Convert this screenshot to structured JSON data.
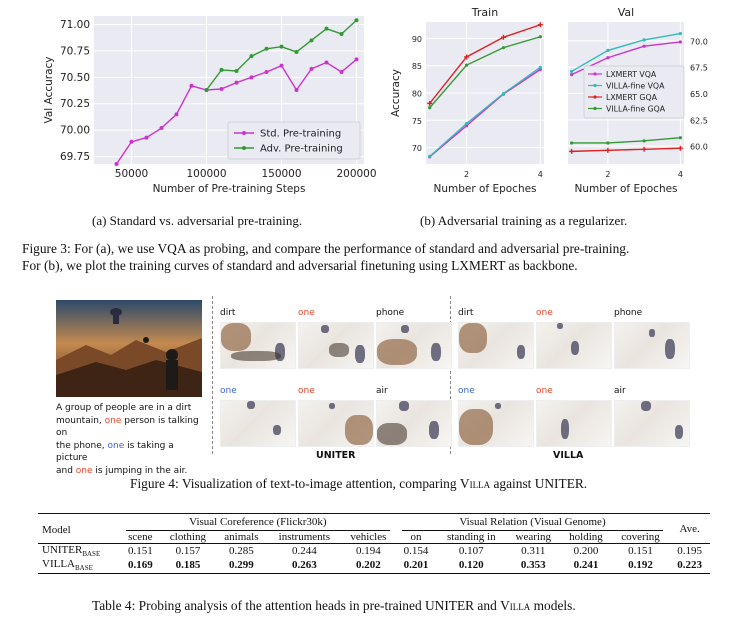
{
  "chart_data": [
    {
      "type": "line",
      "ylabel": "Val Accuracy",
      "xlabel": "Number of Pre-training Steps",
      "xlim": [
        25000,
        205000
      ],
      "ylim": [
        69.68,
        71.08
      ],
      "xticks": [
        50000,
        100000,
        150000,
        200000
      ],
      "xtick_labels": [
        "50000",
        "100000",
        "150000",
        "200000"
      ],
      "yticks": [
        69.75,
        70.0,
        70.25,
        70.5,
        70.75,
        71.0
      ],
      "ytick_labels": [
        "69.75",
        "70.00",
        "70.25",
        "70.50",
        "70.75",
        "71.00"
      ],
      "legend_position": "lower-right",
      "series": [
        {
          "name": "Std. Pre-training",
          "color": "#cc33cc",
          "x": [
            40000,
            50000,
            60000,
            70000,
            80000,
            90000,
            100000,
            110000,
            120000,
            130000,
            140000,
            150000,
            160000,
            170000,
            180000,
            190000,
            200000
          ],
          "y": [
            69.68,
            69.89,
            69.93,
            70.02,
            70.15,
            70.42,
            70.38,
            70.39,
            70.45,
            70.5,
            70.55,
            70.61,
            70.38,
            70.58,
            70.64,
            70.55,
            70.67
          ]
        },
        {
          "name": "Adv. Pre-training",
          "color": "#339933",
          "x": [
            100000,
            110000,
            120000,
            130000,
            140000,
            150000,
            160000,
            170000,
            180000,
            190000,
            200000
          ],
          "y": [
            70.38,
            70.57,
            70.56,
            70.7,
            70.77,
            70.79,
            70.74,
            70.85,
            70.96,
            70.91,
            71.04
          ]
        }
      ]
    },
    {
      "type": "line",
      "title": "Train",
      "ylabel": "Accuracy",
      "xlabel": "Number of Epoches",
      "xlim": [
        0.9,
        4.1
      ],
      "ylim": [
        67,
        93
      ],
      "xticks": [
        2,
        4
      ],
      "xtick_labels": [
        "2",
        "4"
      ],
      "yticks": [
        70,
        75,
        80,
        85,
        90
      ],
      "ytick_labels": [
        "70",
        "75",
        "80",
        "85",
        "90"
      ],
      "series": [
        {
          "name": "LXMERT VQA",
          "color": "#cc33cc",
          "x": [
            1,
            2,
            3,
            4
          ],
          "y": [
            68.3,
            74.0,
            79.8,
            84.3
          ]
        },
        {
          "name": "VILLA-fine VQA",
          "color": "#33bbbb",
          "x": [
            1,
            2,
            3,
            4
          ],
          "y": [
            68.4,
            74.4,
            79.9,
            84.7
          ]
        },
        {
          "name": "LXMERT GQA",
          "color": "#dd2222",
          "x": [
            1,
            2,
            3,
            4
          ],
          "y": [
            78.1,
            86.6,
            90.2,
            92.5
          ]
        },
        {
          "name": "VILLA-fine GQA",
          "color": "#339933",
          "x": [
            1,
            2,
            3,
            4
          ],
          "y": [
            77.3,
            85.1,
            88.3,
            90.3
          ]
        }
      ]
    },
    {
      "type": "line",
      "title": "Val",
      "xlabel": "Number of Epoches",
      "xlim": [
        0.9,
        4.1
      ],
      "ylim": [
        58.3,
        71.8
      ],
      "xticks": [
        2,
        4
      ],
      "xtick_labels": [
        "2",
        "4"
      ],
      "yticks": [
        60.0,
        62.5,
        65.0,
        67.5,
        70.0
      ],
      "ytick_labels": [
        "60.0",
        "62.5",
        "65.0",
        "67.5",
        "70.0"
      ],
      "legend_position": "center-right",
      "series": [
        {
          "name": "LXMERT VQA",
          "color": "#cc33cc",
          "x": [
            1,
            2,
            3,
            4
          ],
          "y": [
            66.8,
            68.4,
            69.5,
            69.9
          ]
        },
        {
          "name": "VILLA-fine VQA",
          "color": "#33bbbb",
          "x": [
            1,
            2,
            3,
            4
          ],
          "y": [
            67.1,
            69.1,
            70.1,
            70.7
          ]
        },
        {
          "name": "LXMERT GQA",
          "color": "#dd2222",
          "x": [
            1,
            2,
            3,
            4
          ],
          "y": [
            59.5,
            59.6,
            59.7,
            59.8
          ]
        },
        {
          "name": "VILLA-fine GQA",
          "color": "#339933",
          "x": [
            1,
            2,
            3,
            4
          ],
          "y": [
            60.3,
            60.3,
            60.5,
            60.8
          ]
        }
      ]
    }
  ],
  "fig3": {
    "sub_a": "(a) Standard vs. adversarial pre-training.",
    "sub_b": "(b) Adversarial training as a regularizer.",
    "caption_l1": "Figure 3: For (a), we use VQA as probing, and compare the performance of standard and adversarial pre-training.",
    "caption_l2": "For (b), we plot the training curves of standard and adversarial finetuning using LXMERT as backbone."
  },
  "fig4": {
    "desc": [
      [
        {
          "t": "A group of people are in a dirt",
          "c": ""
        }
      ],
      [
        {
          "t": "mountain, ",
          "c": ""
        },
        {
          "t": "one",
          "c": "red"
        },
        {
          "t": " person is talking on",
          "c": ""
        }
      ],
      [
        {
          "t": "the phone, ",
          "c": ""
        },
        {
          "t": "one",
          "c": "blue"
        },
        {
          "t": " is taking a picture",
          "c": ""
        }
      ],
      [
        {
          "t": "and ",
          "c": ""
        },
        {
          "t": "one",
          "c": "red"
        },
        {
          "t": " is jumping in the air.",
          "c": ""
        }
      ]
    ],
    "uniter_words": [
      {
        "w": "dirt",
        "c": "#111111"
      },
      {
        "w": "one",
        "c": "#e8452c"
      },
      {
        "w": "phone",
        "c": "#111111"
      },
      {
        "w": "one",
        "c": "#3a66d0"
      },
      {
        "w": "one",
        "c": "#e8452c"
      },
      {
        "w": "air",
        "c": "#111111"
      }
    ],
    "villa_words": [
      {
        "w": "dirt",
        "c": "#111111"
      },
      {
        "w": "one",
        "c": "#e8452c"
      },
      {
        "w": "phone",
        "c": "#111111"
      },
      {
        "w": "one",
        "c": "#3a66d0"
      },
      {
        "w": "one",
        "c": "#e8452c"
      },
      {
        "w": "air",
        "c": "#111111"
      }
    ],
    "label_uniter": "UNITER",
    "label_villa": "VILLA",
    "caption_pre": "Figure 4: Visualization of text-to-image attention, comparing ",
    "caption_sc": "Villa",
    "caption_post": " against UNITER."
  },
  "table4": {
    "col_model": "Model",
    "group1": "Visual Coreference (Flickr30k)",
    "group2": "Visual Relation (Visual Genome)",
    "col_ave": "Ave.",
    "subcols": [
      "scene",
      "clothing",
      "animals",
      "instruments",
      "vehicles",
      "on",
      "standing in",
      "wearing",
      "holding",
      "covering"
    ],
    "rows": [
      {
        "model": "UNITER",
        "sub": "BASE",
        "values": [
          "0.151",
          "0.157",
          "0.285",
          "0.244",
          "0.194",
          "0.154",
          "0.107",
          "0.311",
          "0.200",
          "0.151",
          "0.195"
        ]
      },
      {
        "model": "VILLA",
        "sub": "BASE",
        "values": [
          "0.169",
          "0.185",
          "0.299",
          "0.263",
          "0.202",
          "0.201",
          "0.120",
          "0.353",
          "0.241",
          "0.192",
          "0.223"
        ]
      }
    ],
    "caption_pre": "Table 4: Probing analysis of the attention heads in pre-trained UNITER and ",
    "caption_sc": "Villa",
    "caption_post": " models."
  }
}
